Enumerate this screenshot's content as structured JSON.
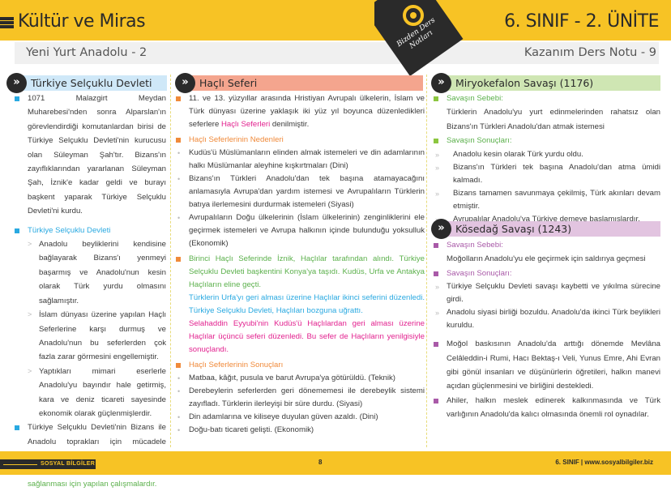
{
  "header": {
    "title": "Kültür ve Miras",
    "unit": "6. SINIF - 2. ÜNİTE",
    "subtitle": "Yeni Yurt Anadolu - 2",
    "note": "Kazanım Ders Notu - 9",
    "badge_text": "Bizden Ders Notları"
  },
  "colors": {
    "yellow": "#f7c325",
    "blue": "#29a9e1",
    "orange": "#f08a3a",
    "green": "#5bb04b",
    "pink": "#e2228f",
    "purple": "#a95aa8"
  },
  "col1": {
    "heading": "Türkiye Selçuklu Devleti",
    "p1": "1071 Malazgirt Meydan Muharebesi'nden sonra Alparslan'ın görevlendirdiği komutanlardan birisi de Türkiye Selçuklu Devleti'nin kurucusu olan Süleyman Şah'tır. Bizans'ın zayıflıklarından yararlanan Süleyman Şah, İznik'e kadar geldi ve burayı başkent yaparak Türkiye Selçuklu Devleti'ni kurdu.",
    "sub_heading": "Türkiye Selçuklu Devleti",
    "bullets": [
      "Anadolu beyliklerini kendisine bağlayarak Bizans'ı yenmeyi başarmış ve Anadolu'nun kesin olarak Türk yurdu olmasını sağlamıştır.",
      "İslam dünyası üzerine yapılan Haçlı Seferlerine karşı durmuş ve Anadolu'nun bu seferlerden çok fazla zarar görmesini engellemiştir.",
      "Yaptıkları mimari eserlerle Anadolu'yu bayındır hale getirmiş, kara ve deniz ticareti sayesinde ekonomik olarak güçlenmişlerdir."
    ],
    "p2_a": "Türkiye Selçuklu Devleti'nin Bizans ile Anadolu toprakları için mücadele etmesi, Anadolu beyliklerini kendisine bağlaması ",
    "p2_b": "Anadolu siyasi birliğinin sağlanması için yapılan çalışmalardır."
  },
  "col2": {
    "heading": "Haçlı Seferi",
    "p1_a": "11. ve 13. yüzyıllar arasında Hristiyan Avrupalı ülkelerin, İslam ve Türk dünyası üzerine yaklaşık iki yüz yıl boyunca düzenledikleri seferlere ",
    "p1_highlight": "Haçlı Seferleri",
    "p1_b": " denilmiştir.",
    "causes_heading": "Haçlı Seferlerinin Nedenleri",
    "causes": [
      "Kudüs'ü Müslümanların elinden almak istemeleri ve din adamlarının halkı Müslümanlar aleyhine kışkırtmaları (Dini)",
      "Bizans'ın Türkleri Anadolu'dan tek başına atamayacağını anlamasıyla Avrupa'dan yardım istemesi ve Avrupalıların Türklerin batıya ilerlemesini durdurmak istemeleri (Siyasi)",
      "Avrupalıların Doğu ülkelerinin (İslam ülkelerinin) zenginliklerini ele geçirmek istemeleri ve Avrupa halkının içinde bulunduğu yoksulluk (Ekonomik)"
    ],
    "first": "Birinci Haçlı Seferinde İznik, Haçlılar tarafından alındı. Türkiye Selçuklu Devleti başkentini Konya'ya taşıdı.  Kudüs, Urfa ve Antakya Haçlıların eline geçti.",
    "second": "Türklerin Urfa'yı geri alması üzerine Haçlılar ikinci seferini düzenledi. Türkiye  Selçuklu Devleti, Haçlıları bozguna uğrattı.",
    "third": "Selahaddin Eyyubi'nin Kudüs'ü Haçlılardan geri alması üzerine Haçlılar üçüncü seferi düzenledi. Bu sefer de Haçlıların yenilgisiyle sonuçlandı.",
    "results_heading": "Haçlı Seferlerinin Sonuçları",
    "results": [
      "Matbaa, kâğıt, pusula ve barut Avrupa'ya götürüldü. (Teknik)",
      "Derebeylerin seferlerden geri dönememesi ile derebeylik sistemi zayıfladı. Türklerin ilerleyişi bir süre durdu. (Siyasi)",
      "Din adamlarına ve kiliseye duyulan güven azaldı. (Dini)",
      "Doğu-batı ticareti gelişti. (Ekonomik)"
    ]
  },
  "col3": {
    "heading1": "Miryokefalon Savaşı (1176)",
    "cause_label": "Savaşın Sebebi:",
    "cause_text": "Türklerin Anadolu'yu yurt edinmelerinden rahatsız olan Bizans'ın Türkleri Anadolu'dan atmak istemesi",
    "results_label": "Savaşın Sonuçları:",
    "results": [
      "Anadolu kesin olarak Türk yurdu oldu.",
      "Bizans'ın Türkleri tek başına Anadolu'dan atma ümidi kalmadı.",
      "Bizans tamamen savunmaya çekilmiş, Türk akınları devam etmiştir.",
      "Avrupalılar Anadolu'ya Türkiye demeye başlamışlardır."
    ],
    "heading2": "Kösedağ Savaşı (1243)",
    "cause2_label": "Savaşın Sebebi:",
    "cause2_text": "Moğolların Anadolu'yu ele geçirmek için saldırıya geçmesi",
    "results2_label": "Savaşın Sonuçları:",
    "results2": [
      "Türkiye Selçuklu Devleti savaşı kaybetti ve yıkılma sürecine girdi.",
      "Anadolu siyasi birliği bozuldu. Anadolu'da ikinci Türk beylikleri kuruldu."
    ],
    "p_a": "Moğol baskısının Anadolu'da arttığı dönemde Mevlâna Celâleddin-i Rumi, Hacı Bektaş-ı Veli, Yunus Emre, Ahi Evran gibi gönül insanları ve düşünürlerin öğretileri, halkın manevi açıdan güçlenmesini ve birliğini destekledi.",
    "p_b": "Ahiler, halkın meslek edinerek kalkınmasında ve Türk varlığının Anadolu'da kalıcı olmasında önemli rol oynadılar."
  },
  "footer": {
    "subject": "SOSYAL BİLGİLER",
    "page": "8",
    "right": "6. SINIF | www.sosyalbilgiler.biz"
  }
}
